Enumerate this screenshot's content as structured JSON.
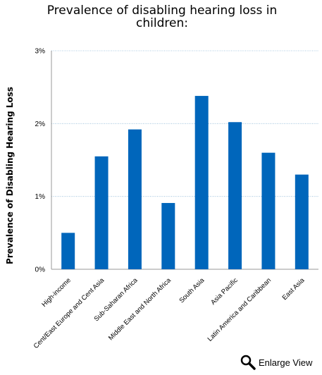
{
  "chart_data": {
    "type": "bar",
    "title": "Prevalence of disabling hearing loss in children:",
    "title_lines": [
      "Prevalence of disabling hearing loss in",
      "children:"
    ],
    "xlabel": "",
    "ylabel": "Prevalence of Disabling Hearing Loss",
    "ylim": [
      0,
      3
    ],
    "y_ticks": [
      0,
      1,
      2,
      3
    ],
    "y_tick_labels": [
      "0%",
      "1%",
      "2%",
      "3%"
    ],
    "grid": true,
    "bar_color": "#0066bb",
    "categories": [
      "High-income",
      "Cent/East Europe and Cent Asia",
      "Sub-Saharan Africa",
      "Middle East and North Africa",
      "South Asia",
      "Asia Pacific",
      "Latin America and Caribbean",
      "East Asia"
    ],
    "values": [
      0.5,
      1.55,
      1.92,
      0.91,
      2.38,
      2.02,
      1.6,
      1.3
    ]
  },
  "footer": {
    "enlarge_label": "Enlarge View",
    "enlarge_icon": "magnifier-icon"
  }
}
